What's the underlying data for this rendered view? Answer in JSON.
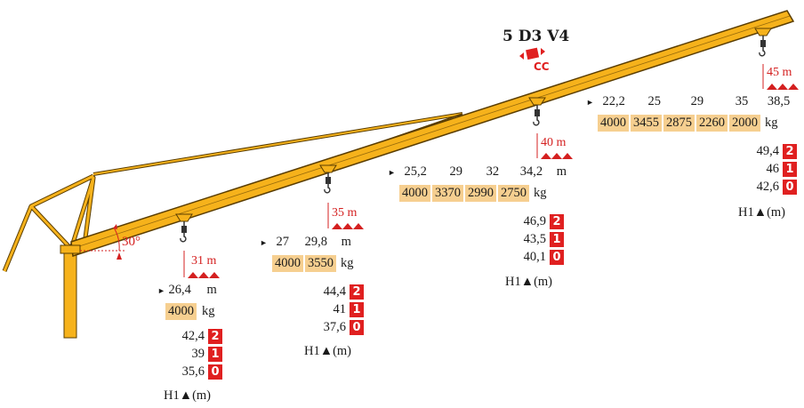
{
  "title": "5 D3 V4",
  "cc_label": "CC",
  "angle_label": "30°",
  "sections": [
    {
      "hook_label": "31 m",
      "radii": [
        "26,4"
      ],
      "radius_unit": "m",
      "loads": [
        "4000"
      ],
      "load_unit": "kg",
      "heights": [
        {
          "h": "42,4",
          "code": "2"
        },
        {
          "h": "39",
          "code": "1"
        },
        {
          "h": "35,6",
          "code": "0"
        }
      ],
      "height_label": "H1▲(m)"
    },
    {
      "hook_label": "35 m",
      "radii": [
        "27",
        "29,8"
      ],
      "radius_unit": "m",
      "loads": [
        "4000",
        "3550"
      ],
      "load_unit": "kg",
      "heights": [
        {
          "h": "44,4",
          "code": "2"
        },
        {
          "h": "41",
          "code": "1"
        },
        {
          "h": "37,6",
          "code": "0"
        }
      ],
      "height_label": "H1▲(m)"
    },
    {
      "hook_label": "40 m",
      "radii": [
        "25,2",
        "29",
        "32",
        "34,2"
      ],
      "radius_unit": "m",
      "loads": [
        "4000",
        "3370",
        "2990",
        "2750"
      ],
      "load_unit": "kg",
      "heights": [
        {
          "h": "46,9",
          "code": "2"
        },
        {
          "h": "43,5",
          "code": "1"
        },
        {
          "h": "40,1",
          "code": "0"
        }
      ],
      "height_label": "H1▲(m)"
    },
    {
      "hook_label": "45 m",
      "radii": [
        "22,2",
        "25",
        "29",
        "35",
        "38,5"
      ],
      "radius_unit": "m",
      "loads": [
        "4000",
        "3455",
        "2875",
        "2260",
        "2000"
      ],
      "load_unit": "kg",
      "heights": [
        {
          "h": "49,4",
          "code": "2"
        },
        {
          "h": "46",
          "code": "1"
        },
        {
          "h": "42,6",
          "code": "0"
        }
      ],
      "height_label": "H1▲(m)"
    }
  ]
}
